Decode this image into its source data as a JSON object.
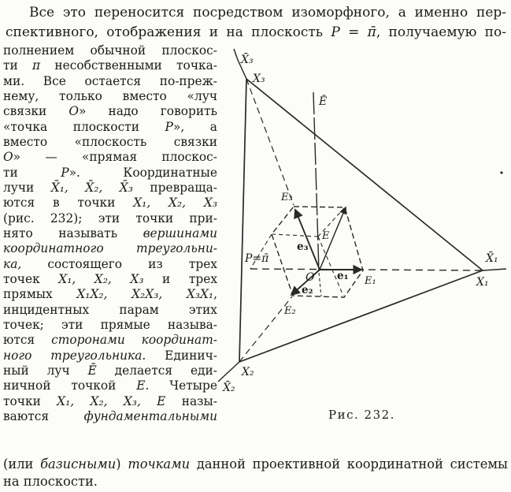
{
  "page": {
    "background": "#fcfcfa",
    "ink": "#1c1b18"
  },
  "text": {
    "top_lines": [
      {
        "segs": [
          {
            "t": "Все это переносится посредством изоморфного, а именно пер-"
          }
        ]
      },
      {
        "segs": [
          {
            "t": "спективного, отображения и на плоскость "
          },
          {
            "t": "P",
            "i": true
          },
          {
            "t": " = "
          },
          {
            "t": "π̄",
            "i": true
          },
          {
            "t": ", получаемую по-"
          }
        ]
      }
    ],
    "left_lines": [
      {
        "segs": [
          {
            "t": "полнением обычной плоскос-"
          }
        ]
      },
      {
        "segs": [
          {
            "t": "ти "
          },
          {
            "t": "π",
            "i": true
          },
          {
            "t": " несобственными точка-"
          }
        ]
      },
      {
        "segs": [
          {
            "t": "ми. Все остается по-преж-"
          }
        ]
      },
      {
        "segs": [
          {
            "t": "нему, только вместо «луч"
          }
        ]
      },
      {
        "segs": [
          {
            "t": "связки "
          },
          {
            "t": "O",
            "i": true
          },
          {
            "t": "» надо говорить"
          }
        ]
      },
      {
        "segs": [
          {
            "t": "«точка плоскости "
          },
          {
            "t": "P",
            "i": true
          },
          {
            "t": "», а"
          }
        ]
      },
      {
        "segs": [
          {
            "t": "вместо «плоскость связки"
          }
        ]
      },
      {
        "segs": [
          {
            "t": "O",
            "i": true
          },
          {
            "t": "» — «прямая плоскос-"
          }
        ]
      },
      {
        "segs": [
          {
            "t": "ти "
          },
          {
            "t": "P",
            "i": true
          },
          {
            "t": "». Координатные"
          }
        ]
      },
      {
        "segs": [
          {
            "t": "лучи "
          },
          {
            "t": "X̄₁, X̄₂, X̄₃",
            "i": true
          },
          {
            "t": " превраща-"
          }
        ]
      },
      {
        "segs": [
          {
            "t": "ются в точки "
          },
          {
            "t": "X₁, X₂, X₃",
            "i": true
          }
        ]
      },
      {
        "segs": [
          {
            "t": "(рис. 232); эти точки при-"
          }
        ]
      },
      {
        "segs": [
          {
            "t": "нято называть "
          },
          {
            "t": "вершинами",
            "i": true
          }
        ]
      },
      {
        "segs": [
          {
            "t": "координатного треугольни-",
            "i": true
          }
        ]
      },
      {
        "segs": [
          {
            "t": "ка,",
            "i": true
          },
          {
            "t": " состоящего из трех"
          }
        ]
      },
      {
        "segs": [
          {
            "t": "точек "
          },
          {
            "t": "X₁, X₂, X₃",
            "i": true
          },
          {
            "t": " и трех"
          }
        ]
      },
      {
        "segs": [
          {
            "t": "прямых "
          },
          {
            "t": "X₁X₂, X₂X₃, X₃X₁",
            "i": true
          },
          {
            "t": ","
          }
        ]
      },
      {
        "segs": [
          {
            "t": "инцидентных парам этих"
          }
        ]
      },
      {
        "segs": [
          {
            "t": "точек; эти прямые называ-"
          }
        ]
      },
      {
        "segs": [
          {
            "t": "ются "
          },
          {
            "t": "сторонами координат-",
            "i": true
          }
        ]
      },
      {
        "segs": [
          {
            "t": "ного треугольника.",
            "i": true
          },
          {
            "t": " Единич-"
          }
        ]
      },
      {
        "segs": [
          {
            "t": "ный луч "
          },
          {
            "t": "Ē",
            "i": true
          },
          {
            "t": " делается еди-"
          }
        ]
      },
      {
        "segs": [
          {
            "t": "ничной точкой "
          },
          {
            "t": "E",
            "i": true
          },
          {
            "t": ". Четыре"
          }
        ]
      },
      {
        "segs": [
          {
            "t": "точки "
          },
          {
            "t": "X₁, X₂, X₃, E",
            "i": true
          },
          {
            "t": " назы-"
          }
        ]
      },
      {
        "segs": [
          {
            "t": "ваются "
          },
          {
            "t": "фундаментальными",
            "i": true
          }
        ]
      }
    ],
    "bottom_lines": [
      {
        "segs": [
          {
            "t": "(или "
          },
          {
            "t": "базисными",
            "i": true
          },
          {
            "t": ") "
          },
          {
            "t": "точками",
            "i": true
          },
          {
            "t": " данной проективной  координатной системы"
          }
        ]
      },
      {
        "segs": [
          {
            "t": "на плоскости."
          }
        ]
      }
    ]
  },
  "figure": {
    "caption": "Рис. 232.",
    "labels": {
      "x3_bar": "X̄₃",
      "x3": "X₃",
      "e_bar": "Ē",
      "e3_unit": "E₃",
      "p_plane": "P=π̄",
      "e_unit_point": "E",
      "e3_vec": "e₃",
      "origin": "O",
      "e1_vec": "e₁",
      "e1_unit": "E₁",
      "e2_vec": "e₂",
      "e2_unit": "E₂",
      "x1_bar": "X̄₁",
      "x1": "X₁",
      "x2": "X₂",
      "x2_bar": "X̄₂"
    }
  }
}
